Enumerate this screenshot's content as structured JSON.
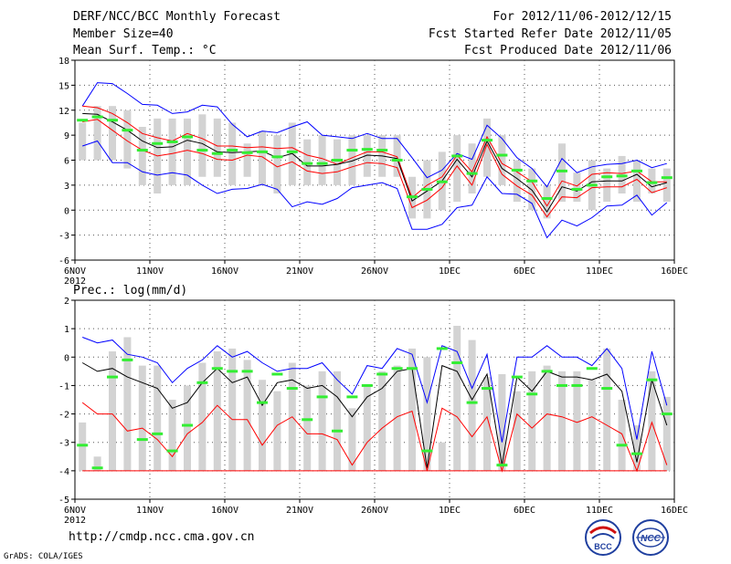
{
  "header": {
    "title": "DERF/NCC/BCC Monthly Forecast",
    "member_size": "Member Size=40",
    "variable1": "Mean Surf. Temp.: °C",
    "period": "For 2012/11/06-2012/12/15",
    "started": "Fcst Started Refer Date 2012/11/05",
    "produced": "Fcst Produced Date 2012/11/06"
  },
  "footer": {
    "url": "http://cmdp.ncc.cma.gov.cn",
    "credit": "GrADS: COLA/IGES"
  },
  "logos": {
    "left_text": "BCC",
    "right_text": "NCC"
  },
  "colors": {
    "max": "#0000ff",
    "min": "#0000ff",
    "spread": "#ff0000",
    "mean": "#000000",
    "obs": "#33ee33",
    "bar": "#d3d3d3"
  },
  "chart_data": [
    {
      "type": "line",
      "title": "Mean Surf. Temp.: °C",
      "xlabel": "",
      "ylabel": "°C",
      "ylim": [
        -6,
        18
      ],
      "yticks": [
        -6,
        -3,
        0,
        3,
        6,
        9,
        12,
        15,
        18
      ],
      "xticks": [
        {
          "day": 0,
          "label": "6NOV"
        },
        {
          "day": 5,
          "label": "11NOV"
        },
        {
          "day": 10,
          "label": "16NOV"
        },
        {
          "day": 15,
          "label": "21NOV"
        },
        {
          "day": 20,
          "label": "26NOV"
        },
        {
          "day": 25,
          "label": "1DEC"
        },
        {
          "day": 30,
          "label": "6DEC"
        },
        {
          "day": 35,
          "label": "11DEC"
        },
        {
          "day": 40,
          "label": "16DEC"
        }
      ],
      "year_label": "2012",
      "days": [
        0,
        1,
        2,
        3,
        4,
        5,
        6,
        7,
        8,
        9,
        10,
        11,
        12,
        13,
        14,
        15,
        16,
        17,
        18,
        19,
        20,
        21,
        22,
        23,
        24,
        25,
        26,
        27,
        28,
        29,
        30,
        31,
        32,
        33,
        34,
        35,
        36,
        37,
        38,
        39
      ],
      "bars_top": [
        10.5,
        12.5,
        12.5,
        12,
        10,
        11,
        11,
        11,
        11.5,
        11,
        10.5,
        8,
        9.5,
        9,
        10.5,
        8.5,
        9,
        8.5,
        9,
        9,
        9,
        9,
        4,
        6,
        7,
        9,
        8,
        11,
        9,
        6,
        5,
        3,
        8,
        4.5,
        6,
        5,
        6.5,
        6,
        5,
        5
      ],
      "bars_bottom": [
        6,
        6,
        6,
        5,
        3,
        2,
        3,
        3,
        4,
        4,
        3,
        4,
        3,
        2,
        3,
        3,
        3,
        3,
        3,
        4,
        4,
        4,
        -1,
        -1,
        0,
        1,
        2,
        4,
        3,
        1,
        0,
        -1,
        1,
        1,
        0,
        1,
        2,
        1,
        2,
        1
      ],
      "series": [
        {
          "name": "max",
          "color": "#0000ff",
          "values": [
            12.5,
            15.3,
            15.2,
            14,
            12.7,
            12.6,
            11.6,
            11.8,
            12.6,
            12.4,
            10.3,
            8.8,
            9.5,
            9.3,
            10,
            10.6,
            9,
            8.8,
            8.6,
            9.2,
            8.6,
            8.6,
            6.3,
            3.9,
            4.8,
            6.8,
            6.1,
            10.2,
            8.6,
            6.3,
            5,
            2.8,
            6.2,
            4.5,
            5.2,
            5.5,
            5.6,
            6,
            5.1,
            5.6
          ]
        },
        {
          "name": "upper",
          "color": "#ff0000",
          "values": [
            12.5,
            12.3,
            11.6,
            10.5,
            9.2,
            8.7,
            8.3,
            9.2,
            8.6,
            7.7,
            7.7,
            7.5,
            7.6,
            7.4,
            7.5,
            6.6,
            6.2,
            5.5,
            6.3,
            7,
            7,
            6.4,
            1.5,
            3,
            4,
            6.6,
            4.6,
            8.8,
            5.6,
            4.6,
            3.4,
            0.5,
            3.5,
            2.9,
            4.3,
            4.5,
            4.4,
            4.7,
            3.4,
            3.4
          ]
        },
        {
          "name": "mean",
          "color": "#000000",
          "values": [
            11.6,
            11.5,
            10.6,
            9.6,
            8.3,
            7.5,
            7.6,
            8.4,
            8,
            7,
            6.9,
            7,
            7.1,
            6.3,
            6.8,
            5.3,
            5.3,
            5.5,
            5.9,
            6.6,
            6.5,
            6.2,
            1.1,
            2.3,
            3.5,
            6.1,
            4,
            8.3,
            5,
            3.8,
            2.4,
            -0.2,
            2.8,
            2.3,
            3.4,
            3.5,
            3.5,
            4.3,
            2.8,
            3.3
          ]
        },
        {
          "name": "lower",
          "color": "#ff0000",
          "values": [
            10.6,
            10.9,
            9.6,
            8.3,
            7.2,
            6.5,
            6.8,
            7.2,
            6.8,
            6.1,
            6,
            6.6,
            6.4,
            5.2,
            5.8,
            4.7,
            4.4,
            4.6,
            5.2,
            5.7,
            5.6,
            5.1,
            0.3,
            1.2,
            2.7,
            5.3,
            3,
            7.9,
            4.3,
            2.9,
            1.8,
            -0.8,
            1.6,
            1.5,
            2.7,
            2.8,
            2.8,
            3.7,
            2.1,
            2.7
          ]
        },
        {
          "name": "min",
          "color": "#0000ff",
          "values": [
            7.7,
            8.3,
            5.7,
            5.7,
            4.6,
            4.2,
            4.5,
            4.2,
            3,
            2,
            2.5,
            2.6,
            3.1,
            2.5,
            0.4,
            1,
            0.7,
            1.4,
            2.7,
            3,
            3.3,
            2.6,
            -2.3,
            -2.3,
            -1.7,
            0.3,
            0.6,
            4,
            2,
            1.9,
            0.8,
            -3.3,
            -1.2,
            -1.9,
            -0.9,
            0.5,
            0.6,
            1.8,
            -0.6,
            0.9
          ]
        }
      ],
      "observed": [
        10.8,
        11.2,
        10.8,
        9.6,
        7.2,
        8,
        8.2,
        8.8,
        7.2,
        6.8,
        7.2,
        6.9,
        7,
        6.4,
        7,
        5.6,
        5.6,
        6,
        7.2,
        7.3,
        7.2,
        6,
        1.6,
        2.5,
        3.4,
        6.5,
        4.4,
        8.4,
        6.6,
        4.8,
        3.5,
        1.4,
        4.7,
        2.5,
        3,
        4,
        4.1,
        4.7,
        3.3,
        3.9
      ]
    },
    {
      "type": "line",
      "title": "Prec.: log(mm/d)",
      "xlabel": "",
      "ylabel": "log(mm/d)",
      "ylim": [
        -5,
        2
      ],
      "yticks": [
        -5,
        -4,
        -3,
        -2,
        -1,
        0,
        1,
        2
      ],
      "xticks": [
        {
          "day": 0,
          "label": "6NOV"
        },
        {
          "day": 5,
          "label": "11NOV"
        },
        {
          "day": 10,
          "label": "16NOV"
        },
        {
          "day": 15,
          "label": "21NOV"
        },
        {
          "day": 20,
          "label": "26NOV"
        },
        {
          "day": 25,
          "label": "1DEC"
        },
        {
          "day": 30,
          "label": "6DEC"
        },
        {
          "day": 35,
          "label": "11DEC"
        },
        {
          "day": 40,
          "label": "16DEC"
        }
      ],
      "year_label": "2012",
      "days": [
        0,
        1,
        2,
        3,
        4,
        5,
        6,
        7,
        8,
        9,
        10,
        11,
        12,
        13,
        14,
        15,
        16,
        17,
        18,
        19,
        20,
        21,
        22,
        23,
        24,
        25,
        26,
        27,
        28,
        29,
        30,
        31,
        32,
        33,
        34,
        35,
        36,
        37,
        38,
        39
      ],
      "bars_top": [
        -2.3,
        -3.5,
        0.2,
        0.7,
        -0.3,
        -0.3,
        -1.5,
        -1,
        -0.2,
        0.2,
        0.3,
        -0.1,
        -0.8,
        -1.2,
        -0.2,
        -1,
        -0.5,
        -0.5,
        -1.8,
        -1,
        -0.5,
        -0.3,
        0.3,
        0,
        -3,
        1.1,
        0.6,
        -0.7,
        -0.6,
        -1.2,
        -0.5,
        -0.3,
        -0.5,
        -0.5,
        -0.8,
        0.3,
        -1.5,
        -2.4,
        -0.5,
        -1.4
      ],
      "bars_bottom": [
        -4,
        -4,
        -4,
        -4,
        -4,
        -4,
        -4,
        -4,
        -4,
        -4,
        -4,
        -4,
        -4,
        -4,
        -4,
        -4,
        -4,
        -4,
        -4,
        -4,
        -4,
        -4,
        -4,
        -4,
        -4,
        -4,
        -4,
        -4,
        -4,
        -4,
        -4,
        -4,
        -4,
        -4,
        -4,
        -4,
        -4,
        -4,
        -4,
        -4
      ],
      "series": [
        {
          "name": "max",
          "color": "#0000ff",
          "values": [
            0.7,
            0.5,
            0.6,
            0.1,
            0,
            -0.2,
            -0.9,
            -0.4,
            -0.1,
            0.4,
            0,
            0.2,
            -0.2,
            -0.5,
            -0.4,
            -0.4,
            -0.2,
            -0.8,
            -1.3,
            -0.3,
            -0.4,
            0.3,
            0.1,
            -1.6,
            0.4,
            0.2,
            -1.1,
            0.1,
            -3,
            0,
            0,
            0.4,
            0,
            0,
            -0.3,
            0.3,
            -0.4,
            -2.9,
            0.2,
            -1.7
          ]
        },
        {
          "name": "mean",
          "color": "#000000",
          "values": [
            -0.2,
            -0.5,
            -0.4,
            -0.7,
            -0.9,
            -1.1,
            -1.8,
            -1.6,
            -0.9,
            -0.4,
            -0.9,
            -0.7,
            -1.7,
            -0.9,
            -0.8,
            -1.1,
            -1,
            -1.4,
            -2.1,
            -1.4,
            -1.1,
            -0.5,
            -0.4,
            -3.9,
            -0.3,
            -0.5,
            -1.5,
            -0.6,
            -3.8,
            -0.7,
            -1.2,
            -0.5,
            -0.7,
            -0.7,
            -0.8,
            -0.6,
            -1.2,
            -3.7,
            -0.8,
            -2.4
          ]
        },
        {
          "name": "lower",
          "color": "#ff0000",
          "values": [
            -1.6,
            -2,
            -2,
            -2.6,
            -2.5,
            -2.9,
            -3.5,
            -2.7,
            -2.3,
            -1.7,
            -2.2,
            -2.2,
            -3.1,
            -2.4,
            -2.1,
            -2.7,
            -2.7,
            -2.9,
            -3.8,
            -3,
            -2.5,
            -2.1,
            -1.9,
            -4,
            -1.8,
            -2.1,
            -2.8,
            -2.1,
            -4,
            -2,
            -2.5,
            -2,
            -2.1,
            -2.3,
            -2.1,
            -2.4,
            -2.7,
            -4,
            -2.3,
            -3.8
          ]
        },
        {
          "name": "min",
          "color": "#ff0000",
          "values": [
            -4,
            -4,
            -4,
            -4,
            -4,
            -4,
            -4,
            -4,
            -4,
            -4,
            -4,
            -4,
            -4,
            -4,
            -4,
            -4,
            -4,
            -4,
            -4,
            -4,
            -4,
            -4,
            -4,
            -4,
            -4,
            -4,
            -4,
            -4,
            -4,
            -4,
            -4,
            -4,
            -4,
            -4,
            -4,
            -4,
            -4,
            -4,
            -4,
            -4
          ]
        }
      ],
      "observed": [
        -3.1,
        -3.9,
        -0.7,
        -0.1,
        -2.9,
        -2.7,
        -3.3,
        -2.4,
        -0.9,
        -0.4,
        -0.5,
        -0.5,
        -1.6,
        -0.6,
        -1.1,
        -2.2,
        -1.4,
        -2.6,
        -1.4,
        -1,
        -0.6,
        -0.4,
        -0.4,
        -3.3,
        0.3,
        -0.2,
        -1.6,
        -1.1,
        -3.8,
        -0.7,
        -1.3,
        -0.5,
        -1,
        -1,
        -0.4,
        -1.1,
        -3.1,
        -3.4,
        -0.8,
        -2
      ]
    }
  ]
}
